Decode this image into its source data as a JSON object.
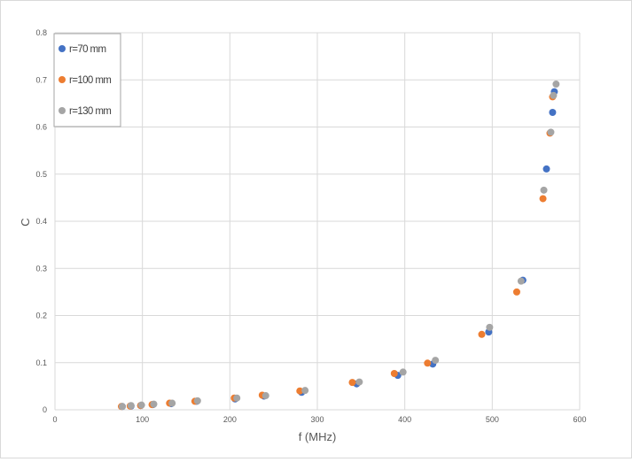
{
  "chart_data": {
    "type": "scatter",
    "title": "",
    "xlabel": "f (MHz)",
    "ylabel": "C",
    "xlim": [
      0,
      600
    ],
    "ylim": [
      0,
      0.8
    ],
    "xticks": [
      "0",
      "100",
      "200",
      "300",
      "400",
      "500",
      "600"
    ],
    "yticks": [
      "0",
      "0.1",
      "0.2",
      "0.3",
      "0.4",
      "0.5",
      "0.6",
      "0.7",
      "0.8"
    ],
    "grid": "vertical and horizontal",
    "legend": "top-left",
    "series": [
      {
        "name": "r=70 mm",
        "color": "#4472C4",
        "points": [
          [
            77,
            0.007
          ],
          [
            87,
            0.008
          ],
          [
            98,
            0.009
          ],
          [
            112,
            0.011
          ],
          [
            133,
            0.013
          ],
          [
            162,
            0.018
          ],
          [
            206,
            0.023
          ],
          [
            239,
            0.029
          ],
          [
            282,
            0.037
          ],
          [
            345,
            0.055
          ],
          [
            392,
            0.073
          ],
          [
            432,
            0.097
          ],
          [
            496,
            0.165
          ],
          [
            535,
            0.275
          ],
          [
            562,
            0.511
          ],
          [
            569,
            0.631
          ],
          [
            571,
            0.675
          ]
        ]
      },
      {
        "name": "r=100 mm",
        "color": "#ED7D31",
        "points": [
          [
            76,
            0.007
          ],
          [
            86,
            0.008
          ],
          [
            98,
            0.009
          ],
          [
            111,
            0.011
          ],
          [
            131,
            0.014
          ],
          [
            160,
            0.018
          ],
          [
            205,
            0.025
          ],
          [
            237,
            0.031
          ],
          [
            280,
            0.04
          ],
          [
            340,
            0.058
          ],
          [
            388,
            0.077
          ],
          [
            426,
            0.099
          ],
          [
            488,
            0.16
          ],
          [
            528,
            0.25
          ],
          [
            558,
            0.448
          ],
          [
            566,
            0.587
          ],
          [
            569,
            0.664
          ]
        ]
      },
      {
        "name": "r=130 mm",
        "color": "#A5A5A5",
        "points": [
          [
            77,
            0.007
          ],
          [
            87,
            0.009
          ],
          [
            99,
            0.01
          ],
          [
            113,
            0.012
          ],
          [
            134,
            0.014
          ],
          [
            163,
            0.019
          ],
          [
            208,
            0.025
          ],
          [
            241,
            0.03
          ],
          [
            286,
            0.041
          ],
          [
            348,
            0.059
          ],
          [
            398,
            0.08
          ],
          [
            435,
            0.105
          ],
          [
            497,
            0.175
          ],
          [
            533,
            0.273
          ],
          [
            559,
            0.466
          ],
          [
            567,
            0.589
          ],
          [
            570,
            0.667
          ],
          [
            573,
            0.691
          ]
        ]
      }
    ]
  }
}
